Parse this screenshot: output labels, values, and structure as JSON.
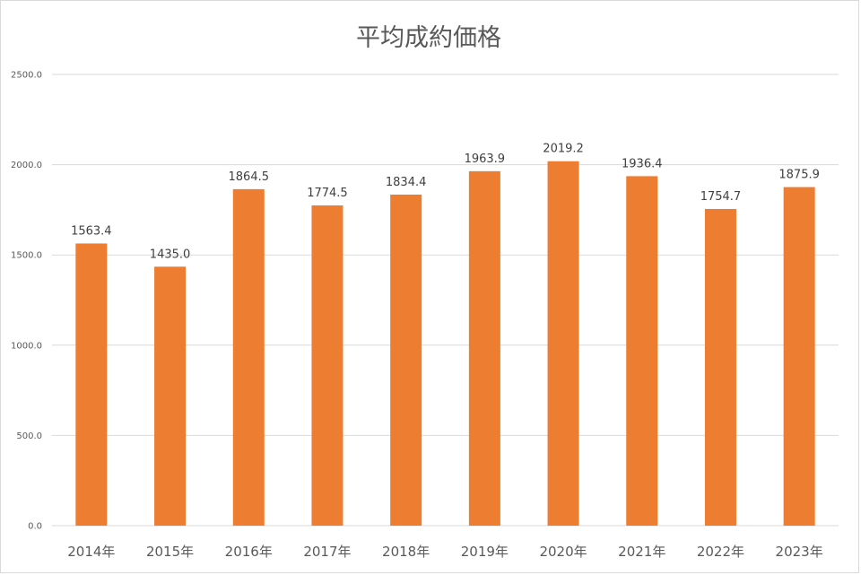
{
  "chart_data": {
    "type": "bar",
    "title": "平均成約価格",
    "xlabel": "",
    "ylabel": "",
    "categories": [
      "2014年",
      "2015年",
      "2016年",
      "2017年",
      "2018年",
      "2019年",
      "2020年",
      "2021年",
      "2022年",
      "2023年"
    ],
    "values": [
      1563.4,
      1435.0,
      1864.5,
      1774.5,
      1834.4,
      1963.9,
      2019.2,
      1936.4,
      1754.7,
      1875.9
    ],
    "value_labels": [
      "1563.4",
      "1435.0",
      "1864.5",
      "1774.5",
      "1834.4",
      "1963.9",
      "2019.2",
      "1936.4",
      "1754.7",
      "1875.9"
    ],
    "ylim": [
      0,
      2500
    ],
    "yticks": [
      0,
      500,
      1000,
      1500,
      2000,
      2500
    ],
    "ytick_labels": [
      "0.0",
      "500.0",
      "1000.0",
      "1500.0",
      "2000.0",
      "2500.0"
    ],
    "grid": true,
    "legend": "none",
    "bar_color": "#ED7D31",
    "grid_color": "#D9D9D9"
  }
}
